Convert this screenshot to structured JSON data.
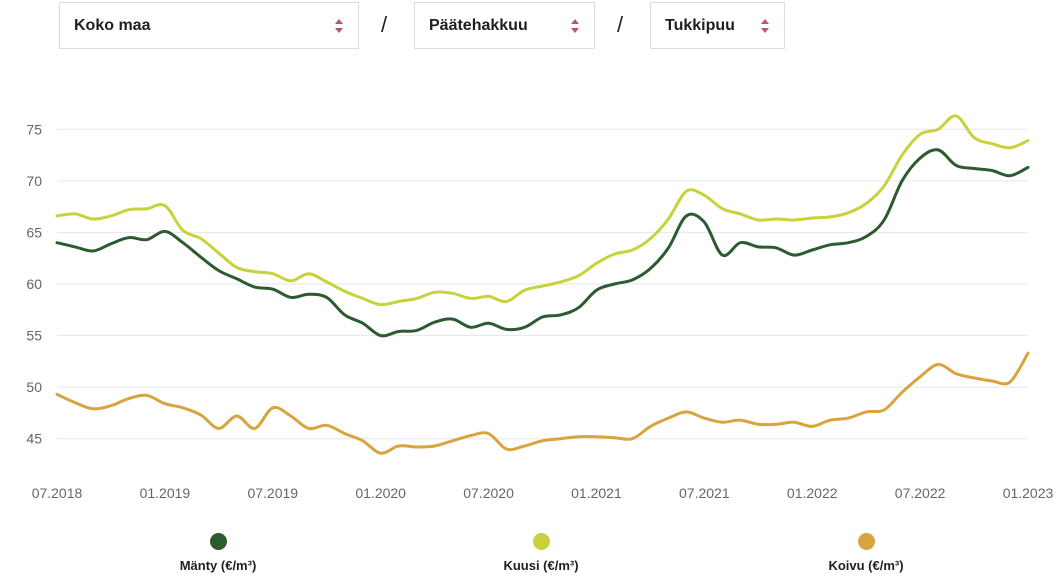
{
  "filters": {
    "region": "Koko maa",
    "separator": "/",
    "felling": "Päätehakkuu",
    "assortment": "Tukkipuu"
  },
  "colors": {
    "manty": "#2b5b2e",
    "kuusi": "#c8d23c",
    "koivu": "#d9a43d",
    "grid": "#e6e6e6",
    "caret": "#b5547c"
  },
  "chart_data": {
    "type": "line",
    "xlabel": "",
    "ylabel": "",
    "ylim": [
      41,
      79
    ],
    "yticks": [
      45,
      50,
      55,
      60,
      65,
      70,
      75
    ],
    "xlim": [
      2018.5,
      2023.0
    ],
    "xtick_labels": [
      "07.2018",
      "01.2019",
      "07.2019",
      "01.2020",
      "07.2020",
      "01.2021",
      "07.2021",
      "01.2022",
      "07.2022",
      "01.2023"
    ],
    "grid": "horizontal",
    "legend_position": "bottom",
    "series": [
      {
        "name": "Mänty (€/m³)",
        "key": "manty",
        "points": [
          [
            "07.2018",
            64.0
          ],
          [
            "08.2018",
            63.6
          ],
          [
            "09.2018",
            63.2
          ],
          [
            "10.2018",
            63.9
          ],
          [
            "11.2018",
            64.5
          ],
          [
            "12.2018",
            64.3
          ],
          [
            "01.2019",
            65.1
          ],
          [
            "02.2019",
            64.0
          ],
          [
            "03.2019",
            62.6
          ],
          [
            "04.2019",
            61.3
          ],
          [
            "05.2019",
            60.5
          ],
          [
            "06.2019",
            59.7
          ],
          [
            "07.2019",
            59.5
          ],
          [
            "08.2019",
            58.7
          ],
          [
            "09.2019",
            59.0
          ],
          [
            "10.2019",
            58.7
          ],
          [
            "11.2019",
            57.0
          ],
          [
            "12.2019",
            56.2
          ],
          [
            "01.2020",
            55.0
          ],
          [
            "02.2020",
            55.4
          ],
          [
            "03.2020",
            55.5
          ],
          [
            "04.2020",
            56.3
          ],
          [
            "05.2020",
            56.6
          ],
          [
            "06.2020",
            55.8
          ],
          [
            "07.2020",
            56.2
          ],
          [
            "08.2020",
            55.6
          ],
          [
            "09.2020",
            55.8
          ],
          [
            "10.2020",
            56.8
          ],
          [
            "11.2020",
            57.0
          ],
          [
            "12.2020",
            57.7
          ],
          [
            "01.2021",
            59.4
          ],
          [
            "02.2021",
            60.0
          ],
          [
            "03.2021",
            60.4
          ],
          [
            "04.2021",
            61.5
          ],
          [
            "05.2021",
            63.5
          ],
          [
            "06.2021",
            66.6
          ],
          [
            "07.2021",
            66.0
          ],
          [
            "08.2021",
            62.8
          ],
          [
            "09.2021",
            64.0
          ],
          [
            "10.2021",
            63.6
          ],
          [
            "11.2021",
            63.5
          ],
          [
            "12.2021",
            62.8
          ],
          [
            "01.2022",
            63.3
          ],
          [
            "02.2022",
            63.8
          ],
          [
            "03.2022",
            64.0
          ],
          [
            "04.2022",
            64.6
          ],
          [
            "05.2022",
            66.2
          ],
          [
            "06.2022",
            70.0
          ],
          [
            "07.2022",
            72.2
          ],
          [
            "08.2022",
            73.0
          ],
          [
            "09.2022",
            71.5
          ],
          [
            "10.2022",
            71.2
          ],
          [
            "11.2022",
            71.0
          ],
          [
            "12.2022",
            70.5
          ],
          [
            "01.2023",
            71.3
          ]
        ]
      },
      {
        "name": "Kuusi (€/m³)",
        "key": "kuusi",
        "points": [
          [
            "07.2018",
            66.6
          ],
          [
            "08.2018",
            66.8
          ],
          [
            "09.2018",
            66.3
          ],
          [
            "10.2018",
            66.6
          ],
          [
            "11.2018",
            67.2
          ],
          [
            "12.2018",
            67.3
          ],
          [
            "01.2019",
            67.6
          ],
          [
            "02.2019",
            65.2
          ],
          [
            "03.2019",
            64.4
          ],
          [
            "04.2019",
            63.0
          ],
          [
            "05.2019",
            61.6
          ],
          [
            "06.2019",
            61.2
          ],
          [
            "07.2019",
            61.0
          ],
          [
            "08.2019",
            60.3
          ],
          [
            "09.2019",
            61.0
          ],
          [
            "10.2019",
            60.2
          ],
          [
            "11.2019",
            59.3
          ],
          [
            "12.2019",
            58.6
          ],
          [
            "01.2020",
            58.0
          ],
          [
            "02.2020",
            58.3
          ],
          [
            "03.2020",
            58.6
          ],
          [
            "04.2020",
            59.2
          ],
          [
            "05.2020",
            59.1
          ],
          [
            "06.2020",
            58.6
          ],
          [
            "07.2020",
            58.8
          ],
          [
            "08.2020",
            58.3
          ],
          [
            "09.2020",
            59.4
          ],
          [
            "10.2020",
            59.8
          ],
          [
            "11.2020",
            60.2
          ],
          [
            "12.2020",
            60.8
          ],
          [
            "01.2021",
            62.0
          ],
          [
            "02.2021",
            62.9
          ],
          [
            "03.2021",
            63.3
          ],
          [
            "04.2021",
            64.4
          ],
          [
            "05.2021",
            66.3
          ],
          [
            "06.2021",
            69.0
          ],
          [
            "07.2021",
            68.6
          ],
          [
            "08.2021",
            67.3
          ],
          [
            "09.2021",
            66.8
          ],
          [
            "10.2021",
            66.2
          ],
          [
            "11.2021",
            66.3
          ],
          [
            "12.2021",
            66.2
          ],
          [
            "01.2022",
            66.4
          ],
          [
            "02.2022",
            66.5
          ],
          [
            "03.2022",
            66.9
          ],
          [
            "04.2022",
            67.8
          ],
          [
            "05.2022",
            69.5
          ],
          [
            "06.2022",
            72.5
          ],
          [
            "07.2022",
            74.5
          ],
          [
            "08.2022",
            75.0
          ],
          [
            "09.2022",
            76.3
          ],
          [
            "10.2022",
            74.2
          ],
          [
            "11.2022",
            73.6
          ],
          [
            "12.2022",
            73.2
          ],
          [
            "01.2023",
            73.9
          ]
        ]
      },
      {
        "name": "Koivu (€/m³)",
        "key": "koivu",
        "points": [
          [
            "07.2018",
            49.3
          ],
          [
            "08.2018",
            48.5
          ],
          [
            "09.2018",
            47.9
          ],
          [
            "10.2018",
            48.2
          ],
          [
            "11.2018",
            48.9
          ],
          [
            "12.2018",
            49.2
          ],
          [
            "01.2019",
            48.4
          ],
          [
            "02.2019",
            48.0
          ],
          [
            "03.2019",
            47.3
          ],
          [
            "04.2019",
            46.0
          ],
          [
            "05.2019",
            47.2
          ],
          [
            "06.2019",
            46.0
          ],
          [
            "07.2019",
            48.0
          ],
          [
            "08.2019",
            47.2
          ],
          [
            "09.2019",
            46.0
          ],
          [
            "10.2019",
            46.3
          ],
          [
            "11.2019",
            45.5
          ],
          [
            "12.2019",
            44.8
          ],
          [
            "01.2020",
            43.6
          ],
          [
            "02.2020",
            44.3
          ],
          [
            "03.2020",
            44.2
          ],
          [
            "04.2020",
            44.3
          ],
          [
            "05.2020",
            44.8
          ],
          [
            "06.2020",
            45.3
          ],
          [
            "07.2020",
            45.5
          ],
          [
            "08.2020",
            44.0
          ],
          [
            "09.2020",
            44.3
          ],
          [
            "10.2020",
            44.8
          ],
          [
            "11.2020",
            45.0
          ],
          [
            "12.2020",
            45.2
          ],
          [
            "01.2021",
            45.2
          ],
          [
            "02.2021",
            45.1
          ],
          [
            "03.2021",
            45.0
          ],
          [
            "04.2021",
            46.2
          ],
          [
            "05.2021",
            47.0
          ],
          [
            "06.2021",
            47.6
          ],
          [
            "07.2021",
            47.0
          ],
          [
            "08.2021",
            46.6
          ],
          [
            "09.2021",
            46.8
          ],
          [
            "10.2021",
            46.4
          ],
          [
            "11.2021",
            46.4
          ],
          [
            "12.2021",
            46.6
          ],
          [
            "01.2022",
            46.2
          ],
          [
            "02.2022",
            46.8
          ],
          [
            "03.2022",
            47.0
          ],
          [
            "04.2022",
            47.6
          ],
          [
            "05.2022",
            47.8
          ],
          [
            "06.2022",
            49.5
          ],
          [
            "07.2022",
            51.0
          ],
          [
            "08.2022",
            52.2
          ],
          [
            "09.2022",
            51.3
          ],
          [
            "10.2022",
            50.9
          ],
          [
            "11.2022",
            50.6
          ],
          [
            "12.2022",
            50.5
          ],
          [
            "01.2023",
            53.3
          ]
        ]
      }
    ]
  }
}
